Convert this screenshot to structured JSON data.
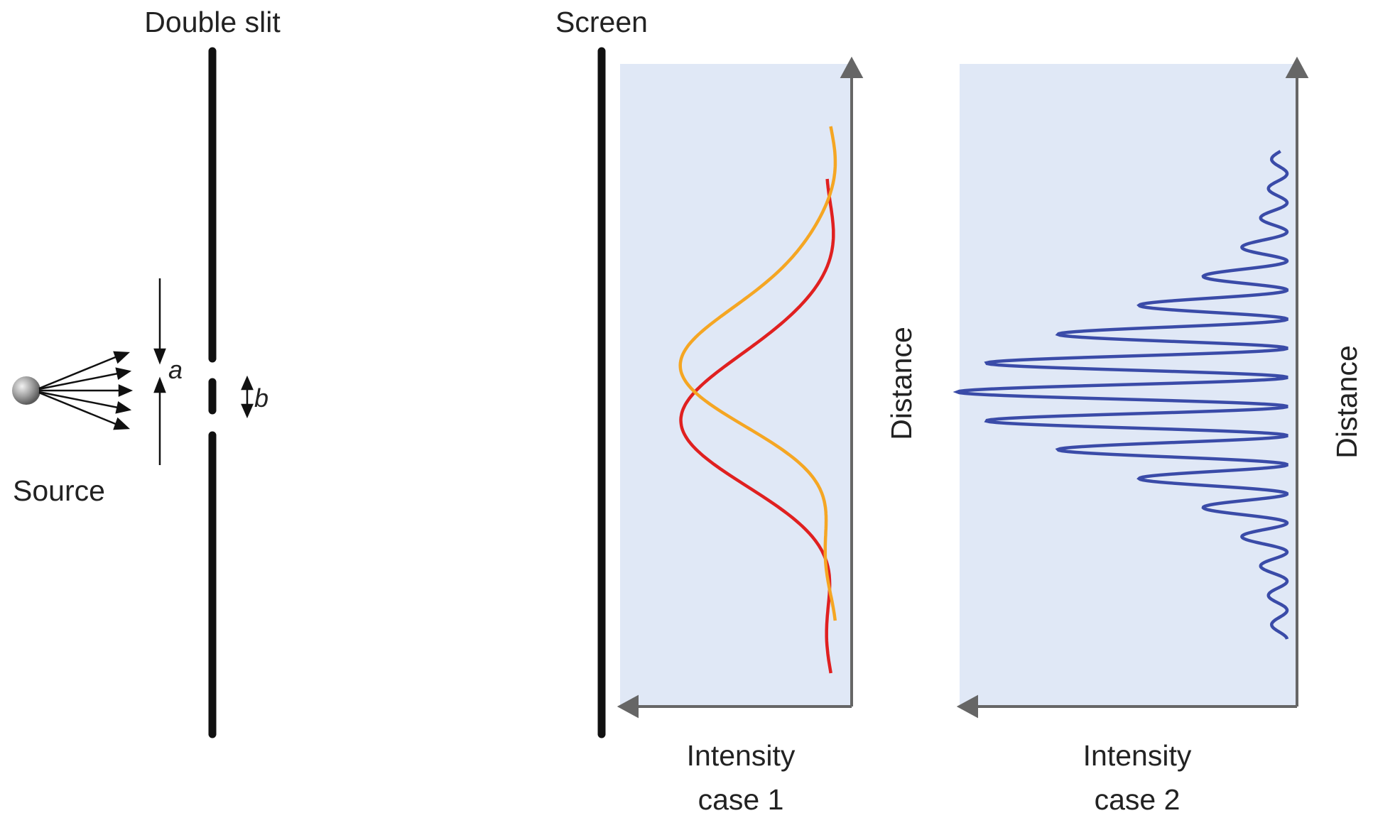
{
  "labels": {
    "double_slit": "Double slit",
    "screen": "Screen",
    "source": "Source",
    "a": "a",
    "b": "b",
    "distance_1": "Distance",
    "distance_2": "Distance",
    "intensity_1": "Intensity",
    "case_1": "case 1",
    "intensity_2": "Intensity",
    "case_2": "case 2"
  },
  "colors": {
    "panel_fill": "#e0e8f6",
    "axis": "#666666",
    "barrier": "#111111",
    "case1_curve_a": "#e02020",
    "case1_curve_b": "#f5a623",
    "case2_curve": "#3a4ba8"
  }
}
